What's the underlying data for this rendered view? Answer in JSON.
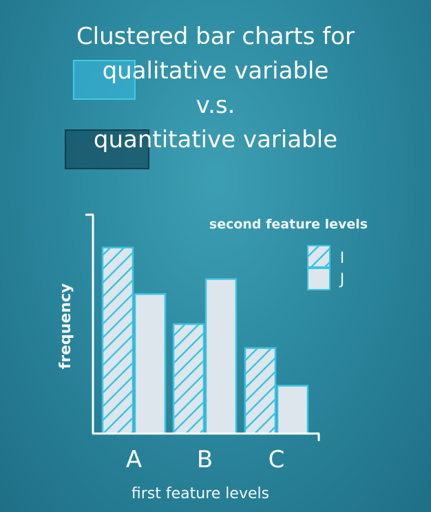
{
  "title": {
    "line1": "Clustered bar charts for",
    "line2": "qualitative variable",
    "line3": "v.s.",
    "line4": "quantitative variable"
  },
  "chart_data": {
    "type": "bar",
    "categories": [
      "A",
      "B",
      "C"
    ],
    "series": [
      {
        "name": "I",
        "values": [
          272,
          160,
          125
        ],
        "pattern": "hatched"
      },
      {
        "name": "J",
        "values": [
          204,
          226,
          70
        ],
        "pattern": "solid"
      }
    ],
    "xlabel": "first feature levels",
    "ylabel": "frequency",
    "ylim": [
      0,
      320
    ],
    "legend": {
      "title": "second feature levels",
      "placement": "top-right"
    },
    "colors": {
      "bar_fill": "#dde6ec",
      "bar_stroke": "#3cc3e3",
      "hatch": "#3cc3e3",
      "axis": "#ffffff"
    }
  }
}
